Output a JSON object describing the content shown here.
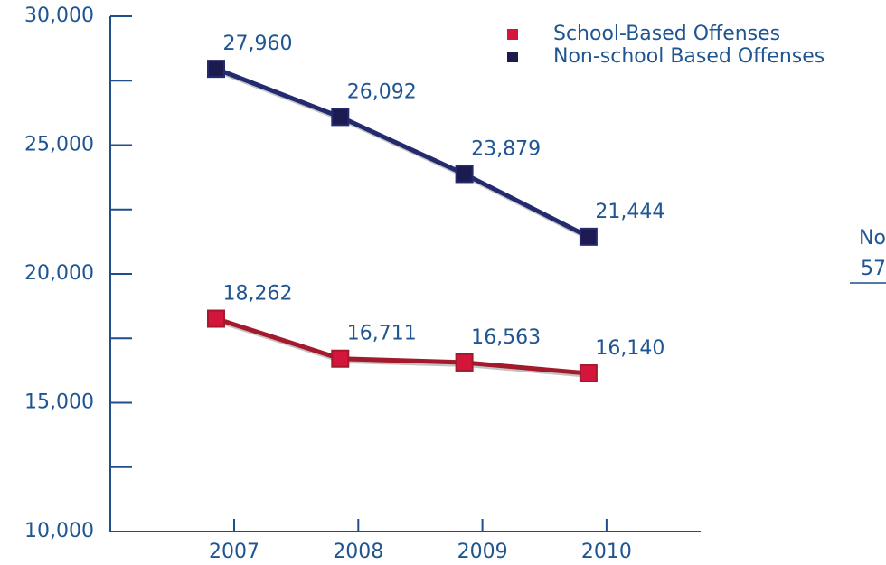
{
  "chart_data": {
    "type": "line",
    "categories": [
      "2007",
      "2008",
      "2009",
      "2010"
    ],
    "series": [
      {
        "name": "School-Based Offenses",
        "color": "#a31a2c",
        "marker_color": "#d4163c",
        "values": [
          18262,
          16711,
          16563,
          16140
        ],
        "value_labels": [
          "18,262",
          "16,711",
          "16,563",
          "16,140"
        ]
      },
      {
        "name": "Non-school Based Offenses",
        "color": "#232a6e",
        "marker_color": "#1c1a4f",
        "values": [
          27960,
          26092,
          23879,
          21444
        ],
        "value_labels": [
          "27,960",
          "26,092",
          "23,879",
          "21,444"
        ]
      }
    ],
    "ylim": [
      10000,
      30000
    ],
    "yticks": [
      {
        "value": 10000,
        "label": "10,000"
      },
      {
        "value": 15000,
        "label": "15,000"
      },
      {
        "value": 20000,
        "label": "20,000"
      },
      {
        "value": 25000,
        "label": "25,000"
      },
      {
        "value": 30000,
        "label": "30,000"
      }
    ],
    "yticks_minor": [
      12500,
      17500,
      22500,
      27500
    ],
    "legend": "top-right",
    "annotations": [
      "No",
      "57"
    ]
  }
}
